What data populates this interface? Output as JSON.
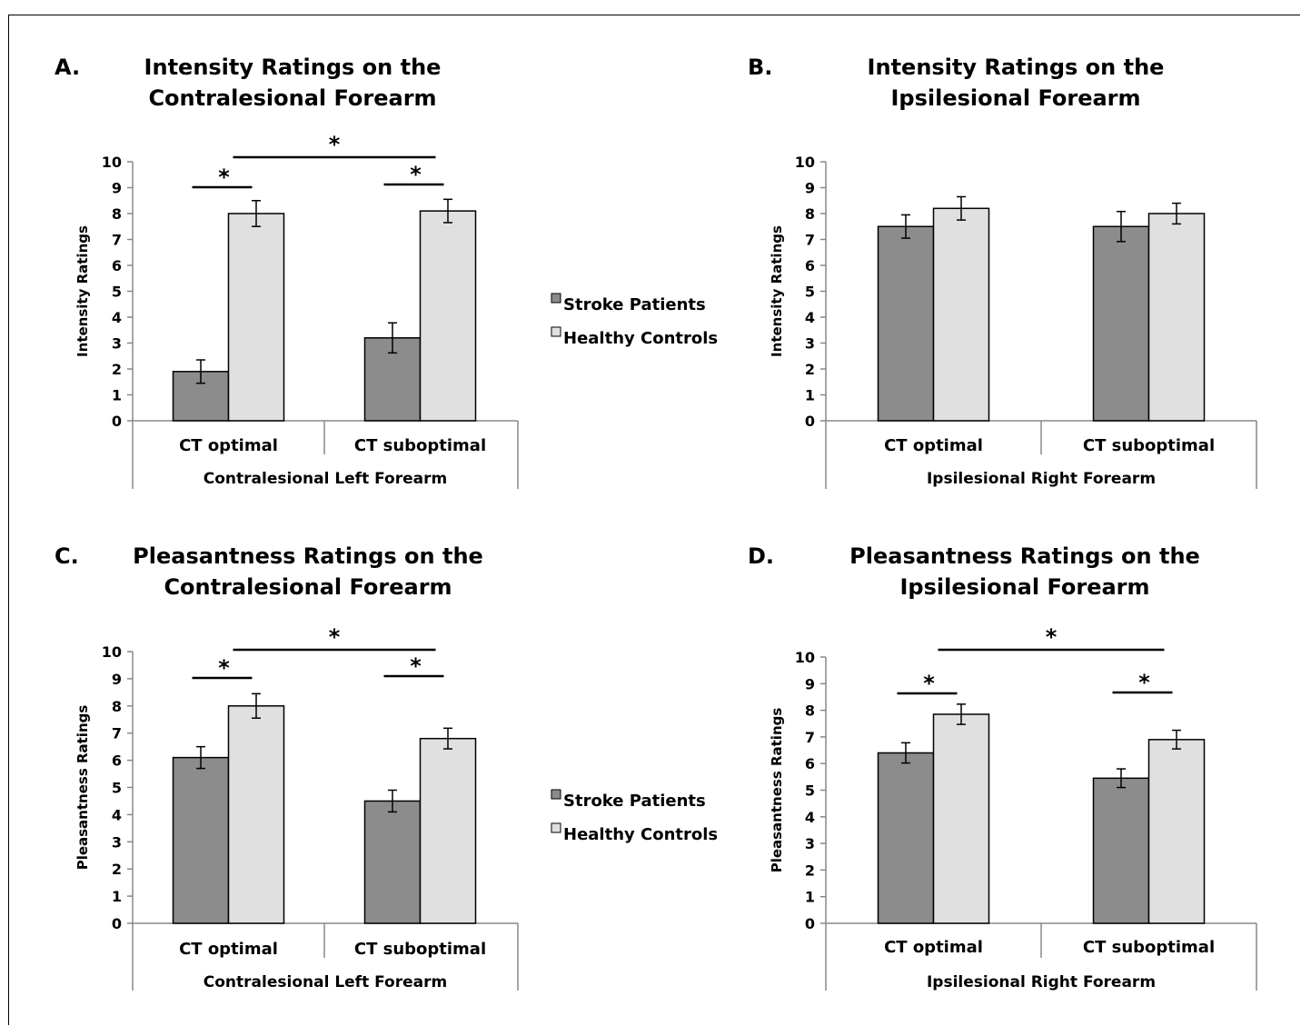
{
  "legend": {
    "items": [
      {
        "label": "Stroke Patients",
        "color": "#8c8c8c"
      },
      {
        "label": "Healthy Controls",
        "color": "#e0e0e0"
      }
    ]
  },
  "chart_data": [
    {
      "panel_letter": "A.",
      "type": "bar",
      "title_lines": [
        "Intensity Ratings on the",
        "Contralesional Forearm"
      ],
      "ylabel": "Intensity Ratings",
      "ylim": [
        0,
        10
      ],
      "yticks": [
        "0",
        "1",
        "2",
        "3",
        "4",
        "5",
        "6",
        "7",
        "8",
        "9",
        "10"
      ],
      "categories": [
        "CT optimal",
        "CT suboptimal"
      ],
      "group_label": "Contralesional Left Forearm",
      "series": [
        {
          "name": "Stroke Patients",
          "color": "#8c8c8c",
          "values": [
            1.9,
            3.2
          ],
          "errors": [
            0.45,
            0.58
          ]
        },
        {
          "name": "Healthy Controls",
          "color": "#e0e0e0",
          "values": [
            8.0,
            8.1
          ],
          "errors": [
            0.5,
            0.45
          ]
        }
      ],
      "significance": [
        {
          "label": "*",
          "type": "within",
          "category": 0
        },
        {
          "label": "*",
          "type": "within",
          "category": 1
        },
        {
          "label": "*",
          "type": "across"
        }
      ]
    },
    {
      "panel_letter": "B.",
      "type": "bar",
      "title_lines": [
        "Intensity Ratings on the",
        "Ipsilesional Forearm"
      ],
      "ylabel": "Intensity Ratings",
      "ylim": [
        0,
        10
      ],
      "yticks": [
        "0",
        "1",
        "2",
        "3",
        "4",
        "5",
        "6",
        "7",
        "8",
        "9",
        "10"
      ],
      "categories": [
        "CT optimal",
        "CT suboptimal"
      ],
      "group_label": "Ipsilesional Right Forearm",
      "series": [
        {
          "name": "Stroke Patients",
          "color": "#8c8c8c",
          "values": [
            7.5,
            7.5
          ],
          "errors": [
            0.45,
            0.58
          ]
        },
        {
          "name": "Healthy Controls",
          "color": "#e0e0e0",
          "values": [
            8.2,
            8.0
          ],
          "errors": [
            0.45,
            0.4
          ]
        }
      ],
      "significance": []
    },
    {
      "panel_letter": "C.",
      "type": "bar",
      "title_lines": [
        "Pleasantness Ratings on the",
        "Contralesional Forearm"
      ],
      "ylabel": "Pleasantness Ratings",
      "ylim": [
        0,
        10
      ],
      "yticks": [
        "0",
        "1",
        "2",
        "3",
        "4",
        "5",
        "6",
        "7",
        "8",
        "9",
        "10"
      ],
      "categories": [
        "CT optimal",
        "CT suboptimal"
      ],
      "group_label": "Contralesional Left Forearm",
      "series": [
        {
          "name": "Stroke Patients",
          "color": "#8c8c8c",
          "values": [
            6.1,
            4.5
          ],
          "errors": [
            0.4,
            0.4
          ]
        },
        {
          "name": "Healthy Controls",
          "color": "#e0e0e0",
          "values": [
            8.0,
            6.8
          ],
          "errors": [
            0.45,
            0.38
          ]
        }
      ],
      "significance": [
        {
          "label": "*",
          "type": "within",
          "category": 0
        },
        {
          "label": "*",
          "type": "within",
          "category": 1
        },
        {
          "label": "*",
          "type": "across"
        }
      ]
    },
    {
      "panel_letter": "D.",
      "type": "bar",
      "title_lines": [
        "Pleasantness Ratings on the",
        "Ipsilesional Forearm"
      ],
      "ylabel": "Pleasantness Ratings",
      "ylim": [
        0,
        10
      ],
      "yticks": [
        "0",
        "1",
        "2",
        "3",
        "4",
        "5",
        "6",
        "7",
        "8",
        "9",
        "10"
      ],
      "categories": [
        "CT optimal",
        "CT suboptimal"
      ],
      "group_label": "Ipsilesional Right Forearm",
      "series": [
        {
          "name": "Stroke Patients",
          "color": "#8c8c8c",
          "values": [
            6.4,
            5.45
          ],
          "errors": [
            0.38,
            0.35
          ]
        },
        {
          "name": "Healthy Controls",
          "color": "#e0e0e0",
          "values": [
            7.85,
            6.9
          ],
          "errors": [
            0.38,
            0.35
          ]
        }
      ],
      "significance": [
        {
          "label": "*",
          "type": "within",
          "category": 0
        },
        {
          "label": "*",
          "type": "within",
          "category": 1
        },
        {
          "label": "*",
          "type": "across"
        }
      ]
    }
  ]
}
